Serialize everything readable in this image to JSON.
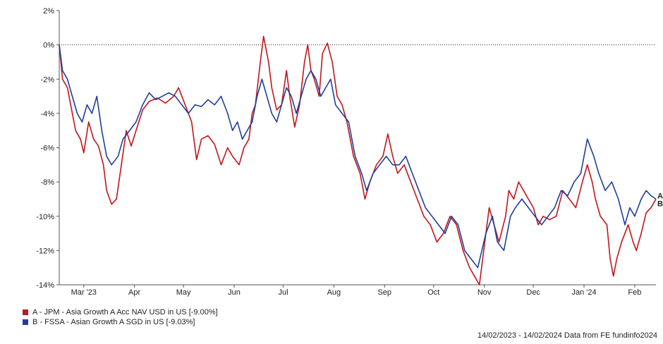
{
  "chart_data": {
    "type": "line",
    "y_ticks": [
      "2%",
      "0%",
      "-2%",
      "-4%",
      "-6%",
      "-8%",
      "-10%",
      "-12%",
      "-14%"
    ],
    "ylim": [
      -14,
      2
    ],
    "x_ticks": [
      "Mar '23",
      "Apr",
      "May",
      "Jun",
      "Jul",
      "Aug",
      "Sep",
      "Oct",
      "Nov",
      "Dec",
      "Jan '24",
      "Feb"
    ],
    "x_tick_dates": [
      "2023-03-01",
      "2023-04-01",
      "2023-05-01",
      "2023-06-01",
      "2023-07-01",
      "2023-08-01",
      "2023-09-01",
      "2023-10-01",
      "2023-11-01",
      "2023-12-01",
      "2024-01-01",
      "2024-02-01"
    ],
    "xlim": [
      "2023-02-14",
      "2024-02-14"
    ],
    "reference_line": 0,
    "grid": false,
    "series": [
      {
        "name": "A - JPM - Asia Growth A Acc NAV USD in US [-9.00%]",
        "end_label": "A",
        "color": "#c0161b",
        "points": [
          [
            "2023-02-14",
            0.0
          ],
          [
            "2023-02-16",
            -2.0
          ],
          [
            "2023-02-19",
            -2.5
          ],
          [
            "2023-02-21",
            -3.5
          ],
          [
            "2023-02-24",
            -5.0
          ],
          [
            "2023-02-27",
            -5.5
          ],
          [
            "2023-03-01",
            -6.3
          ],
          [
            "2023-03-04",
            -4.5
          ],
          [
            "2023-03-07",
            -5.5
          ],
          [
            "2023-03-10",
            -5.9
          ],
          [
            "2023-03-13",
            -7.0
          ],
          [
            "2023-03-15",
            -8.5
          ],
          [
            "2023-03-18",
            -9.3
          ],
          [
            "2023-03-21",
            -9.0
          ],
          [
            "2023-03-24",
            -7.0
          ],
          [
            "2023-03-27",
            -5.0
          ],
          [
            "2023-03-30",
            -5.9
          ],
          [
            "2023-04-02",
            -5.0
          ],
          [
            "2023-04-06",
            -3.8
          ],
          [
            "2023-04-10",
            -3.3
          ],
          [
            "2023-04-15",
            -3.1
          ],
          [
            "2023-04-20",
            -3.4
          ],
          [
            "2023-04-25",
            -3.0
          ],
          [
            "2023-04-28",
            -2.5
          ],
          [
            "2023-05-02",
            -3.5
          ],
          [
            "2023-05-06",
            -4.5
          ],
          [
            "2023-05-09",
            -6.7
          ],
          [
            "2023-05-12",
            -5.5
          ],
          [
            "2023-05-16",
            -5.3
          ],
          [
            "2023-05-20",
            -5.8
          ],
          [
            "2023-05-24",
            -7.0
          ],
          [
            "2023-05-28",
            -6.0
          ],
          [
            "2023-05-31",
            -6.5
          ],
          [
            "2023-06-04",
            -7.0
          ],
          [
            "2023-06-07",
            -6.0
          ],
          [
            "2023-06-10",
            -5.5
          ],
          [
            "2023-06-12",
            -4.0
          ],
          [
            "2023-06-14",
            -3.5
          ],
          [
            "2023-06-17",
            -1.0
          ],
          [
            "2023-06-19",
            0.5
          ],
          [
            "2023-06-22",
            -1.0
          ],
          [
            "2023-06-24",
            -2.5
          ],
          [
            "2023-06-27",
            -3.8
          ],
          [
            "2023-06-30",
            -3.5
          ],
          [
            "2023-07-03",
            -1.5
          ],
          [
            "2023-07-05",
            -3.0
          ],
          [
            "2023-07-08",
            -4.8
          ],
          [
            "2023-07-11",
            -3.5
          ],
          [
            "2023-07-14",
            -1.0
          ],
          [
            "2023-07-16",
            0.0
          ],
          [
            "2023-07-18",
            -1.5
          ],
          [
            "2023-07-20",
            -2.0
          ],
          [
            "2023-07-23",
            -3.0
          ],
          [
            "2023-07-25",
            -0.5
          ],
          [
            "2023-07-28",
            0.1
          ],
          [
            "2023-07-31",
            -1.0
          ],
          [
            "2023-08-03",
            -3.0
          ],
          [
            "2023-08-06",
            -3.5
          ],
          [
            "2023-08-09",
            -4.5
          ],
          [
            "2023-08-13",
            -6.5
          ],
          [
            "2023-08-17",
            -7.5
          ],
          [
            "2023-08-20",
            -9.0
          ],
          [
            "2023-08-23",
            -8.0
          ],
          [
            "2023-08-27",
            -7.0
          ],
          [
            "2023-08-31",
            -6.5
          ],
          [
            "2023-09-03",
            -5.2
          ],
          [
            "2023-09-06",
            -6.5
          ],
          [
            "2023-09-09",
            -7.5
          ],
          [
            "2023-09-13",
            -7.0
          ],
          [
            "2023-09-17",
            -8.0
          ],
          [
            "2023-09-21",
            -9.0
          ],
          [
            "2023-09-25",
            -10.0
          ],
          [
            "2023-09-29",
            -10.5
          ],
          [
            "2023-10-03",
            -11.5
          ],
          [
            "2023-10-07",
            -11.0
          ],
          [
            "2023-10-11",
            -10.0
          ],
          [
            "2023-10-15",
            -10.5
          ],
          [
            "2023-10-19",
            -12.0
          ],
          [
            "2023-10-23",
            -13.0
          ],
          [
            "2023-10-26",
            -13.5
          ],
          [
            "2023-10-29",
            -14.0
          ],
          [
            "2023-11-02",
            -11.0
          ],
          [
            "2023-11-04",
            -9.5
          ],
          [
            "2023-11-07",
            -10.5
          ],
          [
            "2023-11-10",
            -11.5
          ],
          [
            "2023-11-14",
            -10.0
          ],
          [
            "2023-11-16",
            -8.5
          ],
          [
            "2023-11-19",
            -9.0
          ],
          [
            "2023-11-22",
            -8.0
          ],
          [
            "2023-11-25",
            -8.5
          ],
          [
            "2023-11-28",
            -9.0
          ],
          [
            "2023-12-01",
            -9.5
          ],
          [
            "2023-12-04",
            -10.5
          ],
          [
            "2023-12-07",
            -10.0
          ],
          [
            "2023-12-11",
            -10.2
          ],
          [
            "2023-12-15",
            -10.0
          ],
          [
            "2023-12-19",
            -8.5
          ],
          [
            "2023-12-23",
            -9.0
          ],
          [
            "2023-12-27",
            -9.5
          ],
          [
            "2023-12-31",
            -8.0
          ],
          [
            "2024-01-03",
            -7.0
          ],
          [
            "2024-01-06",
            -8.0
          ],
          [
            "2024-01-08",
            -9.0
          ],
          [
            "2024-01-11",
            -10.0
          ],
          [
            "2024-01-15",
            -10.5
          ],
          [
            "2024-01-17",
            -12.5
          ],
          [
            "2024-01-19",
            -13.5
          ],
          [
            "2024-01-21",
            -12.5
          ],
          [
            "2024-01-24",
            -11.5
          ],
          [
            "2024-01-26",
            -11.0
          ],
          [
            "2024-01-28",
            -10.5
          ],
          [
            "2024-01-31",
            -11.5
          ],
          [
            "2024-02-02",
            -12.0
          ],
          [
            "2024-02-05",
            -11.0
          ],
          [
            "2024-02-08",
            -9.8
          ],
          [
            "2024-02-11",
            -9.5
          ],
          [
            "2024-02-14",
            -9.0
          ]
        ]
      },
      {
        "name": "B - FSSA - Asian Growth A SGD in US [-9.03%]",
        "end_label": "B",
        "color": "#1f3f9a",
        "points": [
          [
            "2023-02-14",
            0.0
          ],
          [
            "2023-02-16",
            -1.5
          ],
          [
            "2023-02-19",
            -2.0
          ],
          [
            "2023-02-22",
            -3.0
          ],
          [
            "2023-02-25",
            -4.0
          ],
          [
            "2023-02-28",
            -4.5
          ],
          [
            "2023-03-03",
            -3.5
          ],
          [
            "2023-03-06",
            -4.0
          ],
          [
            "2023-03-09",
            -3.0
          ],
          [
            "2023-03-12",
            -5.0
          ],
          [
            "2023-03-15",
            -6.5
          ],
          [
            "2023-03-18",
            -7.0
          ],
          [
            "2023-03-22",
            -6.5
          ],
          [
            "2023-03-25",
            -5.5
          ],
          [
            "2023-03-29",
            -5.0
          ],
          [
            "2023-04-02",
            -4.5
          ],
          [
            "2023-04-06",
            -3.5
          ],
          [
            "2023-04-10",
            -2.8
          ],
          [
            "2023-04-14",
            -3.2
          ],
          [
            "2023-04-18",
            -3.0
          ],
          [
            "2023-04-22",
            -2.8
          ],
          [
            "2023-04-26",
            -3.0
          ],
          [
            "2023-04-30",
            -3.5
          ],
          [
            "2023-05-04",
            -4.0
          ],
          [
            "2023-05-08",
            -3.5
          ],
          [
            "2023-05-12",
            -3.6
          ],
          [
            "2023-05-16",
            -3.2
          ],
          [
            "2023-05-20",
            -3.5
          ],
          [
            "2023-05-24",
            -3.0
          ],
          [
            "2023-05-28",
            -4.0
          ],
          [
            "2023-05-31",
            -5.0
          ],
          [
            "2023-06-03",
            -4.5
          ],
          [
            "2023-06-06",
            -5.5
          ],
          [
            "2023-06-09",
            -5.0
          ],
          [
            "2023-06-12",
            -4.5
          ],
          [
            "2023-06-15",
            -3.0
          ],
          [
            "2023-06-18",
            -2.0
          ],
          [
            "2023-06-21",
            -3.0
          ],
          [
            "2023-06-24",
            -4.0
          ],
          [
            "2023-06-27",
            -4.5
          ],
          [
            "2023-06-30",
            -3.5
          ],
          [
            "2023-07-03",
            -2.5
          ],
          [
            "2023-07-06",
            -3.0
          ],
          [
            "2023-07-09",
            -4.0
          ],
          [
            "2023-07-12",
            -3.0
          ],
          [
            "2023-07-15",
            -2.0
          ],
          [
            "2023-07-18",
            -1.5
          ],
          [
            "2023-07-21",
            -2.0
          ],
          [
            "2023-07-24",
            -3.0
          ],
          [
            "2023-07-27",
            -2.5
          ],
          [
            "2023-07-30",
            -2.0
          ],
          [
            "2023-08-02",
            -3.5
          ],
          [
            "2023-08-06",
            -4.0
          ],
          [
            "2023-08-10",
            -4.5
          ],
          [
            "2023-08-14",
            -6.5
          ],
          [
            "2023-08-18",
            -7.5
          ],
          [
            "2023-08-21",
            -8.5
          ],
          [
            "2023-08-25",
            -7.5
          ],
          [
            "2023-08-29",
            -7.0
          ],
          [
            "2023-09-02",
            -6.5
          ],
          [
            "2023-09-06",
            -7.0
          ],
          [
            "2023-09-10",
            -7.0
          ],
          [
            "2023-09-14",
            -6.5
          ],
          [
            "2023-09-18",
            -7.5
          ],
          [
            "2023-09-22",
            -8.5
          ],
          [
            "2023-09-26",
            -9.5
          ],
          [
            "2023-09-30",
            -10.0
          ],
          [
            "2023-10-04",
            -10.5
          ],
          [
            "2023-10-08",
            -11.0
          ],
          [
            "2023-10-12",
            -10.0
          ],
          [
            "2023-10-16",
            -10.5
          ],
          [
            "2023-10-20",
            -12.0
          ],
          [
            "2023-10-24",
            -12.5
          ],
          [
            "2023-10-28",
            -13.0
          ],
          [
            "2023-11-02",
            -11.0
          ],
          [
            "2023-11-06",
            -10.0
          ],
          [
            "2023-11-09",
            -11.5
          ],
          [
            "2023-11-13",
            -12.0
          ],
          [
            "2023-11-17",
            -10.0
          ],
          [
            "2023-11-20",
            -9.5
          ],
          [
            "2023-11-24",
            -9.0
          ],
          [
            "2023-11-28",
            -9.5
          ],
          [
            "2023-12-02",
            -10.0
          ],
          [
            "2023-12-06",
            -10.5
          ],
          [
            "2023-12-10",
            -10.0
          ],
          [
            "2023-12-14",
            -9.5
          ],
          [
            "2023-12-18",
            -8.5
          ],
          [
            "2023-12-22",
            -8.8
          ],
          [
            "2023-12-26",
            -8.0
          ],
          [
            "2023-12-30",
            -7.5
          ],
          [
            "2024-01-03",
            -5.5
          ],
          [
            "2024-01-07",
            -6.5
          ],
          [
            "2024-01-10",
            -7.5
          ],
          [
            "2024-01-14",
            -8.5
          ],
          [
            "2024-01-18",
            -8.0
          ],
          [
            "2024-01-22",
            -9.0
          ],
          [
            "2024-01-26",
            -10.5
          ],
          [
            "2024-01-29",
            -9.5
          ],
          [
            "2024-02-01",
            -10.0
          ],
          [
            "2024-02-05",
            -9.0
          ],
          [
            "2024-02-08",
            -8.5
          ],
          [
            "2024-02-11",
            -8.8
          ],
          [
            "2024-02-14",
            -9.0
          ]
        ]
      }
    ]
  },
  "legend": [
    {
      "label": "A - JPM - Asia Growth A Acc NAV USD in US [-9.00%]",
      "color": "#c0161b"
    },
    {
      "label": "B - FSSA - Asian Growth A SGD in US [-9.03%]",
      "color": "#1f3f9a"
    }
  ],
  "footer": "14/02/2023 - 14/02/2024 Data from FE fundinfo2024"
}
